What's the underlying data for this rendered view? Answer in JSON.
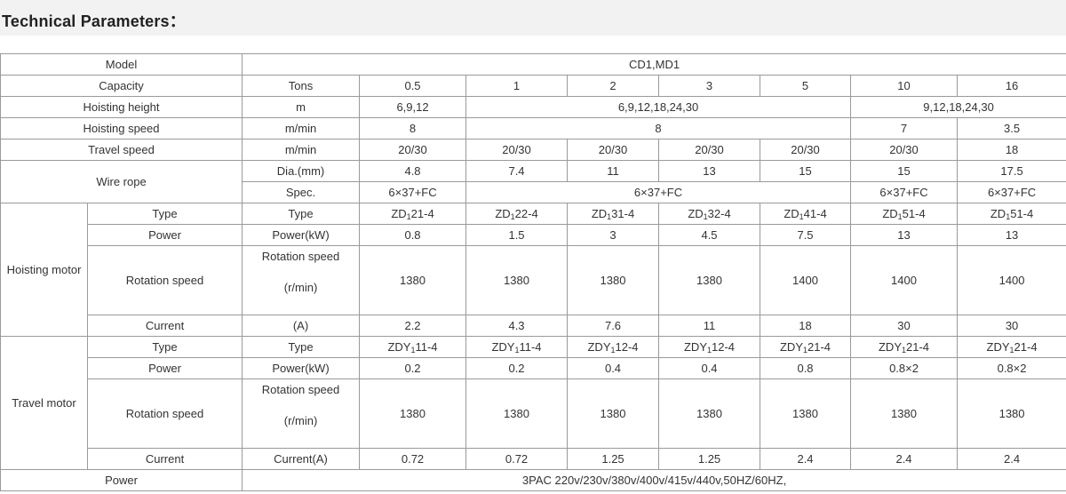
{
  "title": "Technical Parameters：",
  "model": {
    "label": "Model",
    "value": "CD1,MD1"
  },
  "capacity": {
    "label": "Capacity",
    "unit": "Tons",
    "values": [
      "0.5",
      "1",
      "2",
      "3",
      "5",
      "10",
      "16"
    ]
  },
  "hoisting_height": {
    "label": "Hoisting height",
    "unit": "m",
    "values": [
      "6,9,12",
      "6,9,12,18,24,30",
      "9,12,18,24,30"
    ]
  },
  "hoisting_speed": {
    "label": "Hoisting speed",
    "unit": "m/min",
    "values": [
      "8",
      "8",
      "7",
      "3.5"
    ]
  },
  "travel_speed": {
    "label": "Travel speed",
    "unit": "m/min",
    "values": [
      "20/30",
      "20/30",
      "20/30",
      "20/30",
      "20/30",
      "20/30",
      "18"
    ]
  },
  "wire_rope": {
    "label": "Wire rope",
    "dia_unit": "Dia.(mm)",
    "dia_values": [
      "4.8",
      "7.4",
      "11",
      "13",
      "15",
      "15",
      "17.5"
    ],
    "spec_unit": "Spec.",
    "spec_values": [
      "6×37+FC",
      "6×37+FC",
      "6×37+FC",
      "6×37+FC"
    ]
  },
  "hoisting_motor": {
    "label": "Hoisting motor",
    "type_label": "Type",
    "type_unit": "Type",
    "types": [
      {
        "pre": "ZD",
        "sub": "1",
        "post": "21-4"
      },
      {
        "pre": "ZD",
        "sub": "1",
        "post": "22-4"
      },
      {
        "pre": "ZD",
        "sub": "1",
        "post": "31-4"
      },
      {
        "pre": "ZD",
        "sub": "1",
        "post": "32-4"
      },
      {
        "pre": "ZD",
        "sub": "1",
        "post": "41-4"
      },
      {
        "pre": "ZD",
        "sub": "1",
        "post": "51-4"
      },
      {
        "pre": "ZD",
        "sub": "1",
        "post": "51-4"
      }
    ],
    "power_label": "Power",
    "power_unit": "Power(kW)",
    "power_values": [
      "0.8",
      "1.5",
      "3",
      "4.5",
      "7.5",
      "13",
      "13"
    ],
    "rotation_label": "Rotation speed",
    "rotation_unit_top": "Rotation speed",
    "rotation_unit_bottom": "(r/min)",
    "rotation_values": [
      "1380",
      "1380",
      "1380",
      "1380",
      "1400",
      "1400",
      "1400"
    ],
    "current_label": "Current",
    "current_unit": "(A)",
    "current_values": [
      "2.2",
      "4.3",
      "7.6",
      "11",
      "18",
      "30",
      "30"
    ]
  },
  "travel_motor": {
    "label": "Travel motor",
    "type_label": "Type",
    "type_unit": "Type",
    "types": [
      {
        "pre": "ZDY",
        "sub": "1",
        "post": "11-4"
      },
      {
        "pre": "ZDY",
        "sub": "1",
        "post": "11-4"
      },
      {
        "pre": "ZDY",
        "sub": "1",
        "post": "12-4"
      },
      {
        "pre": "ZDY",
        "sub": "1",
        "post": "12-4"
      },
      {
        "pre": "ZDY",
        "sub": "1",
        "post": "21-4"
      },
      {
        "pre": "ZDY",
        "sub": "1",
        "post": "21-4"
      },
      {
        "pre": "ZDY",
        "sub": "1",
        "post": "21-4"
      }
    ],
    "power_label": "Power",
    "power_unit": "Power(kW)",
    "power_values": [
      "0.2",
      "0.2",
      "0.4",
      "0.4",
      "0.8",
      "0.8×2",
      "0.8×2"
    ],
    "rotation_label": "Rotation speed",
    "rotation_unit_top": "Rotation speed",
    "rotation_unit_bottom": "(r/min)",
    "rotation_values": [
      "1380",
      "1380",
      "1380",
      "1380",
      "1380",
      "1380",
      "1380"
    ],
    "current_label": "Current",
    "current_unit": "Current(A)",
    "current_values": [
      "0.72",
      "0.72",
      "1.25",
      "1.25",
      "2.4",
      "2.4",
      "2.4"
    ]
  },
  "power": {
    "label": "Power",
    "value": "3PAC 220v/230v/380v/400v/415v/440v,50HZ/60HZ,"
  }
}
